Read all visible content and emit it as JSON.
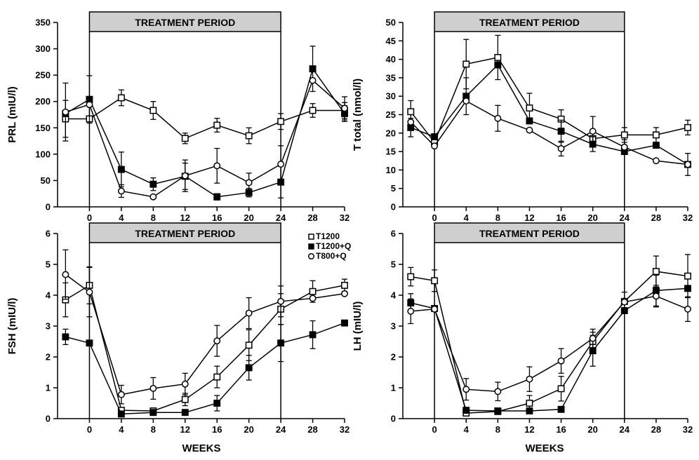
{
  "x_axis": {
    "label": "WEEKS",
    "ticks": [
      0,
      4,
      8,
      12,
      16,
      20,
      24,
      28,
      32
    ],
    "domain": [
      -4,
      32
    ],
    "first_timepoint": -3
  },
  "treatment_label": "TREATMENT PERIOD",
  "treatment_range": [
    0,
    24
  ],
  "legend": [
    {
      "name": "T1200",
      "marker": "open-square"
    },
    {
      "name": "T1200+Q",
      "marker": "filled-square"
    },
    {
      "name": "T800+Q",
      "marker": "open-circle"
    }
  ],
  "chart_data": [
    {
      "type": "line",
      "id": "prl",
      "ylabel": "PRL (mIU/l)",
      "ylim": [
        0,
        350
      ],
      "yticks": [
        0,
        50,
        100,
        150,
        200,
        250,
        300,
        350
      ],
      "x": [
        -3,
        0,
        4,
        8,
        12,
        16,
        20,
        24,
        28,
        32
      ],
      "series": [
        {
          "name": "T1200",
          "values": [
            167,
            167,
            207,
            183,
            130,
            155,
            135,
            162,
            183,
            183
          ],
          "err": [
            35,
            0,
            15,
            17,
            10,
            13,
            15,
            15,
            13,
            15
          ]
        },
        {
          "name": "T1200+Q",
          "values": [
            177,
            204,
            71,
            43,
            58,
            19,
            27,
            47,
            262,
            177
          ],
          "err": [
            0,
            45,
            33,
            12,
            25,
            6,
            8,
            30,
            43,
            15
          ]
        },
        {
          "name": "T800+Q",
          "values": [
            180,
            194,
            30,
            19,
            59,
            78,
            46,
            81,
            240,
            187
          ],
          "err": [
            55,
            0,
            12,
            0,
            30,
            33,
            18,
            35,
            0,
            22
          ]
        }
      ]
    },
    {
      "type": "line",
      "id": "ttotal",
      "ylabel": "T total (nmol/l)",
      "ylim": [
        0,
        50
      ],
      "yticks": [
        0,
        5,
        10,
        15,
        20,
        25,
        30,
        35,
        40,
        45,
        50
      ],
      "x": [
        -3,
        0,
        4,
        8,
        12,
        16,
        20,
        24,
        28,
        32
      ],
      "series": [
        {
          "name": "T1200",
          "values": [
            25.8,
            17.5,
            38.7,
            40.5,
            26.8,
            23.8,
            18.5,
            19.5,
            19.5,
            21.5
          ],
          "err": [
            3,
            0,
            6.7,
            6,
            4,
            2.5,
            0,
            2,
            2,
            2
          ]
        },
        {
          "name": "T1200+Q",
          "values": [
            21.5,
            19,
            30,
            38.5,
            23.3,
            20.5,
            17,
            15,
            16.7,
            11.5
          ],
          "err": [
            2.5,
            0,
            5,
            0,
            0,
            3,
            2,
            0,
            0,
            0
          ]
        },
        {
          "name": "T800+Q",
          "values": [
            23,
            16.5,
            28.7,
            24,
            20.8,
            15.8,
            20.5,
            16.2,
            12.5,
            11.5
          ],
          "err": [
            0,
            0,
            0,
            3.5,
            0,
            2,
            4,
            2,
            0,
            3
          ]
        }
      ]
    },
    {
      "type": "line",
      "id": "fsh",
      "ylabel": "FSH (mIU/l)",
      "ylim": [
        0,
        6
      ],
      "yticks": [
        0,
        1,
        2,
        3,
        4,
        5,
        6
      ],
      "x": [
        -3,
        0,
        4,
        8,
        12,
        16,
        20,
        24,
        28,
        32
      ],
      "series": [
        {
          "name": "T1200",
          "values": [
            3.85,
            4.32,
            0.27,
            0.25,
            0.62,
            1.35,
            2.38,
            3.55,
            4.12,
            4.32
          ],
          "err": [
            0.55,
            0.6,
            0,
            0,
            0.2,
            0.35,
            0.5,
            0.5,
            0.35,
            0.2
          ]
        },
        {
          "name": "T1200+Q",
          "values": [
            2.65,
            2.45,
            0.15,
            0.2,
            0.2,
            0.5,
            1.65,
            2.45,
            2.72,
            3.1
          ],
          "err": [
            0.25,
            0,
            0,
            0,
            0,
            0.25,
            0.4,
            0.6,
            0.45,
            0
          ]
        },
        {
          "name": "T800+Q",
          "values": [
            4.67,
            4.1,
            0.78,
            0.98,
            1.12,
            2.52,
            3.42,
            3.8,
            3.9,
            4.05
          ],
          "err": [
            0.8,
            0.8,
            0.3,
            0.35,
            0.35,
            0.5,
            0.5,
            0.5,
            0,
            0
          ]
        }
      ]
    },
    {
      "type": "line",
      "id": "lh",
      "ylabel": "LH (mIU/l)",
      "ylim": [
        0,
        6
      ],
      "yticks": [
        0,
        1,
        2,
        3,
        4,
        5,
        6
      ],
      "x": [
        -3,
        0,
        4,
        8,
        12,
        16,
        20,
        24,
        28,
        32
      ],
      "series": [
        {
          "name": "T1200",
          "values": [
            4.6,
            4.47,
            0.18,
            0.23,
            0.5,
            0.97,
            2.5,
            3.8,
            4.77,
            4.62
          ],
          "err": [
            0.3,
            0.35,
            0,
            0,
            0.25,
            0.4,
            0.3,
            0.3,
            0.5,
            0.7
          ]
        },
        {
          "name": "T1200+Q",
          "values": [
            3.75,
            3.57,
            0.27,
            0.25,
            0.25,
            0.3,
            2.2,
            3.5,
            4.15,
            4.22
          ],
          "err": [
            0.3,
            0,
            0,
            0,
            0,
            0,
            0.5,
            0,
            0.5,
            0
          ]
        },
        {
          "name": "T800+Q",
          "values": [
            3.48,
            3.55,
            0.95,
            0.88,
            1.28,
            1.87,
            2.6,
            3.78,
            3.97,
            3.55
          ],
          "err": [
            0.4,
            0,
            0.35,
            0.3,
            0.4,
            0.4,
            0.3,
            0,
            0.35,
            0.4
          ]
        }
      ]
    }
  ]
}
